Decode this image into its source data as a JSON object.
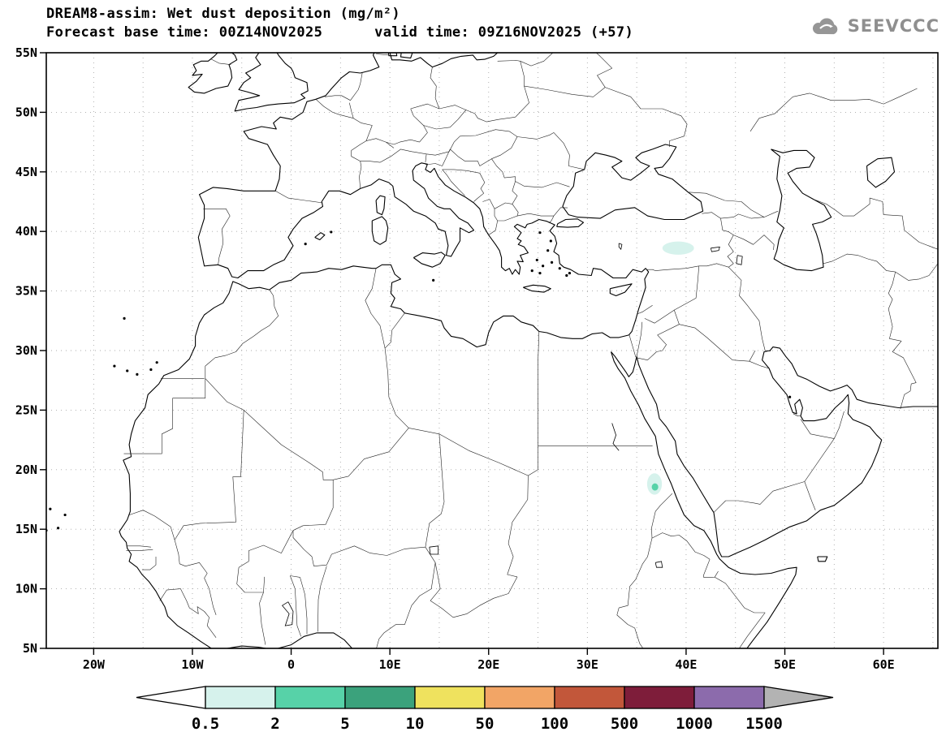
{
  "header": {
    "title": "DREAM8-assim: Wet dust deposition (mg/m²)",
    "subtitle": "Forecast base time: 00Z14NOV2025      valid time: 09Z16NOV2025 (+57)"
  },
  "logo": {
    "text": "SEEVCCC"
  },
  "axes": {
    "lat_ticks": [
      {
        "label": "55N",
        "value": 55
      },
      {
        "label": "50N",
        "value": 50
      },
      {
        "label": "45N",
        "value": 45
      },
      {
        "label": "40N",
        "value": 40
      },
      {
        "label": "35N",
        "value": 35
      },
      {
        "label": "30N",
        "value": 30
      },
      {
        "label": "25N",
        "value": 25
      },
      {
        "label": "20N",
        "value": 20
      },
      {
        "label": "15N",
        "value": 15
      },
      {
        "label": "10N",
        "value": 10
      },
      {
        "label": "5N",
        "value": 5
      }
    ],
    "lon_ticks": [
      {
        "label": "20W",
        "value": -20
      },
      {
        "label": "10W",
        "value": -10
      },
      {
        "label": "0",
        "value": 0
      },
      {
        "label": "10E",
        "value": 10
      },
      {
        "label": "20E",
        "value": 20
      },
      {
        "label": "30E",
        "value": 30
      },
      {
        "label": "40E",
        "value": 40
      },
      {
        "label": "50E",
        "value": 50
      },
      {
        "label": "60E",
        "value": 60
      }
    ]
  },
  "colorbar": {
    "labels": [
      "0.5",
      "2",
      "5",
      "10",
      "50",
      "100",
      "500",
      "1000",
      "1500"
    ]
  },
  "chart_data": {
    "type": "heatmap",
    "title": "DREAM8-assim: Wet dust deposition (mg/m²)",
    "subtitle": "Forecast base time: 00Z14NOV2025   valid time: 09Z16NOV2025 (+57)",
    "model": "DREAM8-assim",
    "variable": "Wet dust deposition",
    "units": "mg/m²",
    "forecast_base_time": "00Z14NOV2025",
    "valid_time": "09Z16NOV2025",
    "forecast_hour": "+57",
    "xlim": [
      -24.8,
      65.5
    ],
    "ylim": [
      5,
      55
    ],
    "grid": true,
    "legend_position": "bottom",
    "levels": [
      0.5,
      2,
      5,
      10,
      50,
      100,
      500,
      1000,
      1500
    ],
    "level_colors": [
      "#ffffff",
      "#d6f2ec",
      "#57d2a8",
      "#3ba27c",
      "#efe25e",
      "#f2a566",
      "#c2573a",
      "#7e1d3a",
      "#8c6bac",
      "#b3b3b3"
    ],
    "regions": [
      {
        "name": "eastern-turkey-patch",
        "lon": 39.2,
        "lat": 38.6,
        "rx_deg": 1.6,
        "ry_deg": 0.55,
        "value_range": "0.5-2",
        "color_index": 1
      },
      {
        "name": "sudan-eritrea-patch-outer",
        "lon": 36.8,
        "lat": 18.8,
        "rx_deg": 0.75,
        "ry_deg": 0.9,
        "value_range": "0.5-2",
        "color_index": 1
      },
      {
        "name": "sudan-eritrea-patch-inner",
        "lon": 36.85,
        "lat": 18.55,
        "rx_deg": 0.33,
        "ry_deg": 0.3,
        "value_range": "2-5",
        "color_index": 2
      }
    ]
  }
}
